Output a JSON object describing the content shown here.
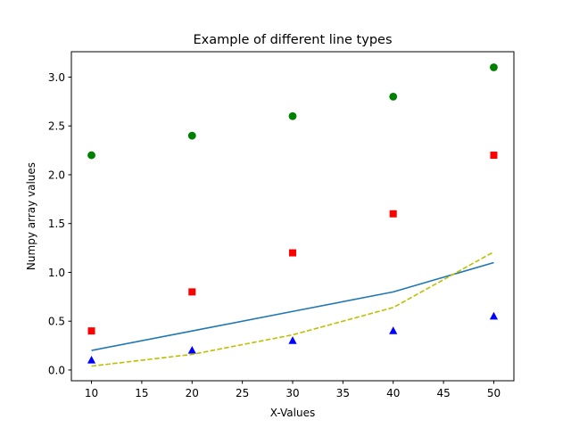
{
  "chart_data": {
    "type": "line",
    "title": "Example of different line types",
    "xlabel": "X-Values",
    "ylabel": "Numpy array values",
    "xlim": [
      8,
      52
    ],
    "ylim": [
      -0.11,
      3.26
    ],
    "xticks": [
      10,
      15,
      20,
      25,
      30,
      35,
      40,
      45,
      50
    ],
    "yticks": [
      0.0,
      0.5,
      1.0,
      1.5,
      2.0,
      2.5,
      3.0
    ],
    "ytick_labels": [
      "0.0",
      "0.5",
      "1.0",
      "1.5",
      "2.0",
      "2.5",
      "3.0"
    ],
    "grid": false,
    "x": [
      10,
      20,
      30,
      40,
      50
    ],
    "series": [
      {
        "marker": "line",
        "style": "solid",
        "color": "#1f77b4",
        "values": [
          0.2,
          0.4,
          0.6,
          0.8,
          1.1
        ]
      },
      {
        "marker": "square",
        "color": "#ff0000",
        "values": [
          0.4,
          0.8,
          1.2,
          1.6,
          2.2
        ]
      },
      {
        "marker": "triangle",
        "color": "#0000ff",
        "values": [
          0.1,
          0.2,
          0.3,
          0.4,
          0.55
        ]
      },
      {
        "marker": "line",
        "style": "dashed",
        "color": "#bfbf00",
        "values": [
          0.04,
          0.16,
          0.36,
          0.64,
          1.21
        ]
      },
      {
        "marker": "circle",
        "color": "#008000",
        "values": [
          2.2,
          2.4,
          2.6,
          2.8,
          3.1
        ]
      }
    ]
  }
}
